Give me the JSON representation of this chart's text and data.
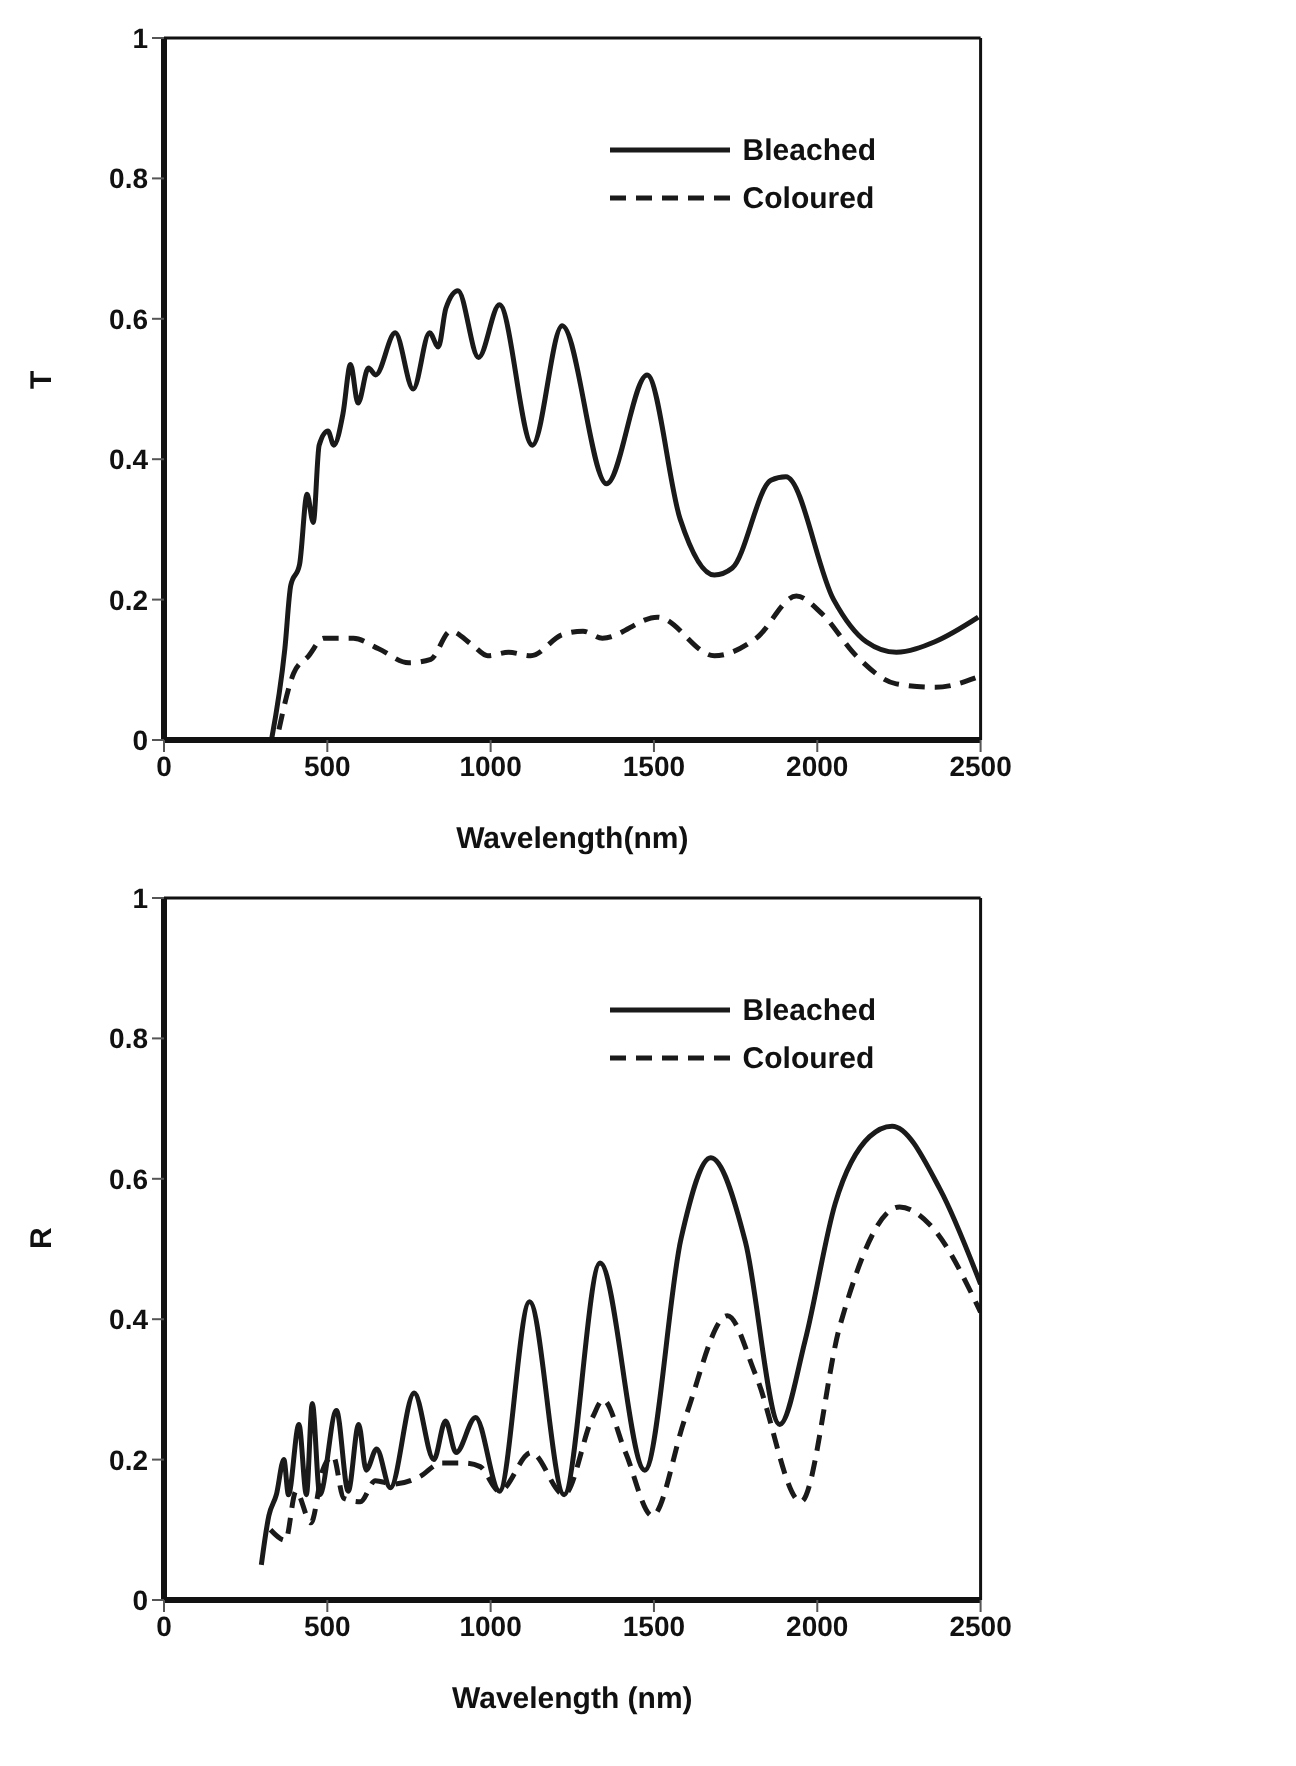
{
  "chart_data": [
    {
      "type": "line",
      "ylabel": "T",
      "xlabel": "Wavelength(nm)",
      "xlim": [
        0,
        2500
      ],
      "xticks": [
        0,
        500,
        1000,
        1500,
        2000,
        2500
      ],
      "ylim": [
        0,
        1
      ],
      "yticks": [
        0,
        0.2,
        0.4,
        0.6,
        0.8,
        1
      ],
      "grid": false,
      "legend": "top right",
      "marker": "none",
      "series": [
        {
          "name": "Bleached",
          "color": "#1a1a1a",
          "line_style": "solid",
          "x": [
            329,
            370,
            388,
            415,
            438,
            457,
            475,
            502,
            520,
            548,
            571,
            594,
            626,
            648,
            708,
            763,
            813,
            840,
            863,
            900,
            963,
            1027,
            1128,
            1219,
            1355,
            1479,
            1580,
            1685,
            1740,
            1858,
            1904,
            2050,
            2150,
            2242,
            2360,
            2493
          ],
          "values": [
            0,
            0.13,
            0.22,
            0.25,
            0.35,
            0.31,
            0.42,
            0.44,
            0.42,
            0.465,
            0.535,
            0.48,
            0.53,
            0.52,
            0.58,
            0.5,
            0.58,
            0.56,
            0.615,
            0.64,
            0.545,
            0.62,
            0.42,
            0.59,
            0.365,
            0.52,
            0.315,
            0.235,
            0.245,
            0.37,
            0.375,
            0.2,
            0.14,
            0.125,
            0.14,
            0.175
          ]
        },
        {
          "name": "Coloured",
          "color": "#1a1a1a",
          "line_style": "dashed",
          "x": [
            352,
            397,
            443,
            489,
            580,
            657,
            749,
            817,
            877,
            945,
            991,
            1055,
            1123,
            1219,
            1283,
            1342,
            1511,
            1685,
            1813,
            1936,
            2014,
            2119,
            2242,
            2361,
            2493
          ],
          "values": [
            0.015,
            0.095,
            0.12,
            0.145,
            0.145,
            0.13,
            0.11,
            0.115,
            0.155,
            0.135,
            0.12,
            0.125,
            0.12,
            0.15,
            0.155,
            0.145,
            0.175,
            0.12,
            0.145,
            0.205,
            0.18,
            0.12,
            0.08,
            0.075,
            0.09
          ]
        }
      ]
    },
    {
      "type": "line",
      "ylabel": "R",
      "xlabel": "Wavelength (nm)",
      "xlim": [
        0,
        2500
      ],
      "xticks": [
        0,
        500,
        1000,
        1500,
        2000,
        2500
      ],
      "ylim": [
        0,
        1
      ],
      "yticks": [
        0,
        0.2,
        0.4,
        0.6,
        0.8,
        1
      ],
      "grid": false,
      "legend": "top right",
      "marker": "none",
      "series": [
        {
          "name": "Bleached",
          "color": "#1a1a1a",
          "line_style": "solid",
          "x": [
            298,
            321,
            344,
            367,
            381,
            413,
            436,
            454,
            477,
            528,
            564,
            596,
            619,
            651,
            693,
            766,
            826,
            862,
            894,
            954,
            1027,
            1119,
            1225,
            1335,
            1472,
            1583,
            1674,
            1780,
            1885,
            1963,
            2055,
            2160,
            2229,
            2376,
            2500
          ],
          "values": [
            0.05,
            0.12,
            0.15,
            0.2,
            0.15,
            0.25,
            0.15,
            0.28,
            0.15,
            0.27,
            0.155,
            0.25,
            0.185,
            0.215,
            0.16,
            0.295,
            0.2,
            0.255,
            0.21,
            0.26,
            0.155,
            0.425,
            0.15,
            0.48,
            0.185,
            0.515,
            0.63,
            0.51,
            0.25,
            0.37,
            0.565,
            0.66,
            0.675,
            0.585,
            0.45
          ]
        },
        {
          "name": "Coloured",
          "color": "#1a1a1a",
          "line_style": "dashed",
          "x": [
            326,
            372,
            404,
            450,
            486,
            518,
            550,
            601,
            647,
            702,
            780,
            849,
            922,
            968,
            1027,
            1124,
            1225,
            1312,
            1344,
            1413,
            1495,
            1596,
            1725,
            1812,
            1950,
            2069,
            2252,
            2344,
            2500
          ],
          "values": [
            0.1,
            0.085,
            0.155,
            0.11,
            0.185,
            0.205,
            0.145,
            0.14,
            0.17,
            0.165,
            0.175,
            0.195,
            0.195,
            0.19,
            0.155,
            0.21,
            0.15,
            0.26,
            0.285,
            0.21,
            0.12,
            0.26,
            0.405,
            0.32,
            0.14,
            0.39,
            0.56,
            0.535,
            0.41
          ]
        }
      ]
    }
  ]
}
